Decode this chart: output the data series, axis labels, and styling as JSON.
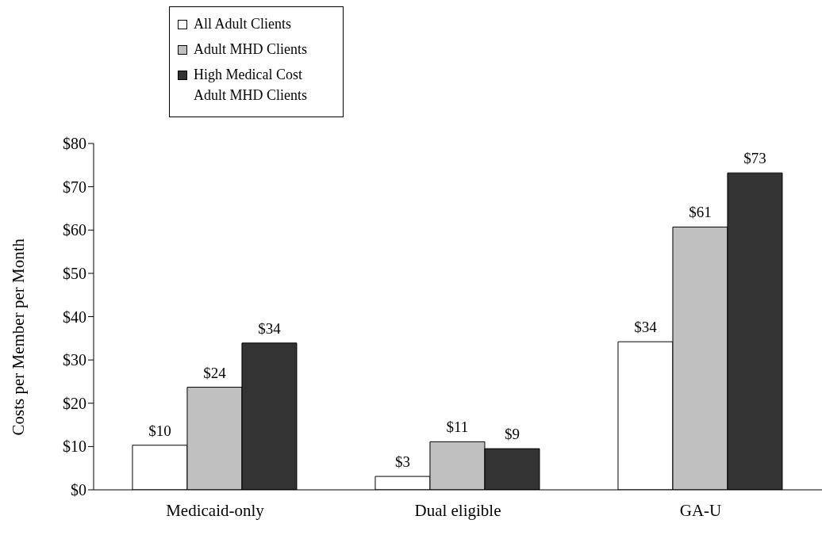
{
  "chart_data": {
    "type": "bar",
    "ylabel": "Costs per Member per Month",
    "categories": [
      "Medicaid-only",
      "Dual eligible",
      "GA-U"
    ],
    "series": [
      {
        "name": "All Adult Clients",
        "color": "#ffffff",
        "values": [
          10.3,
          3.1,
          34.2
        ],
        "value_labels": [
          "$10",
          "$3",
          "$34"
        ]
      },
      {
        "name": "Adult MHD Clients",
        "color": "#c0c0c0",
        "values": [
          23.7,
          11.1,
          60.7
        ],
        "value_labels": [
          "$24",
          "$11",
          "$61"
        ]
      },
      {
        "name": "High Medical Cost Adult MHD Clients",
        "color": "#333333",
        "values": [
          33.9,
          9.5,
          73.2
        ],
        "value_labels": [
          "$34",
          "$9",
          "$73"
        ]
      }
    ],
    "ylim": [
      0,
      80
    ],
    "yticks": [
      {
        "value": 0,
        "label": "$0"
      },
      {
        "value": 10,
        "label": "$10"
      },
      {
        "value": 20,
        "label": "$20"
      },
      {
        "value": 30,
        "label": "$30"
      },
      {
        "value": 40,
        "label": "$40"
      },
      {
        "value": 50,
        "label": "$50"
      },
      {
        "value": 60,
        "label": "$60"
      },
      {
        "value": 70,
        "label": "$70"
      },
      {
        "value": 80,
        "label": "$80"
      }
    ],
    "legend": "top left",
    "grid": false
  }
}
